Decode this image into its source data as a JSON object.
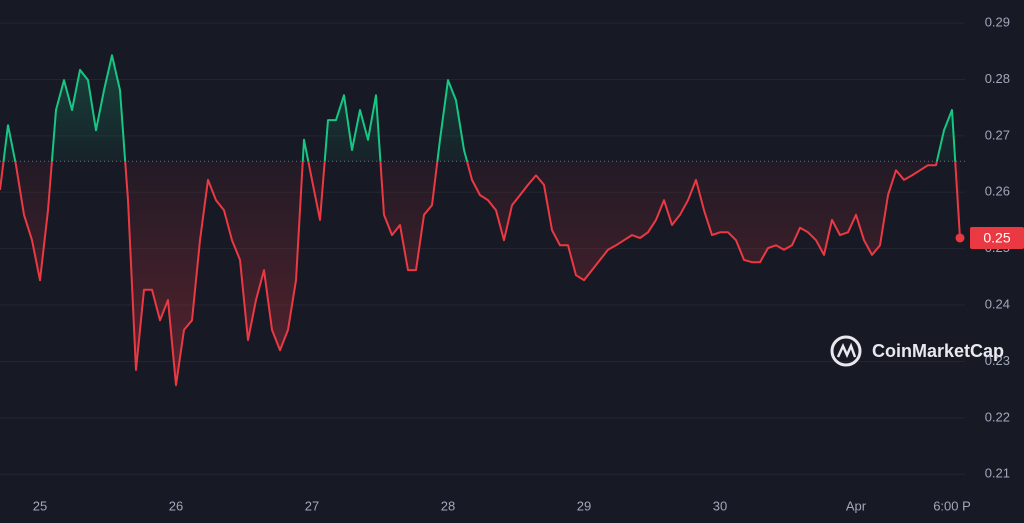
{
  "chart_data": {
    "type": "line",
    "watermark": "CoinMarketCap",
    "categories": [
      null,
      null,
      null,
      null,
      null,
      "25",
      null,
      null,
      null,
      null,
      null,
      null,
      null,
      null,
      null,
      null,
      null,
      null,
      null,
      null,
      null,
      null,
      "26",
      null,
      null,
      null,
      null,
      null,
      null,
      null,
      null,
      null,
      null,
      null,
      null,
      null,
      null,
      null,
      null,
      "27",
      null,
      null,
      null,
      null,
      null,
      null,
      null,
      null,
      null,
      null,
      null,
      null,
      null,
      null,
      null,
      null,
      "28",
      null,
      null,
      null,
      null,
      null,
      null,
      null,
      null,
      null,
      null,
      null,
      null,
      null,
      null,
      null,
      null,
      "29",
      null,
      null,
      null,
      null,
      null,
      null,
      null,
      null,
      null,
      null,
      null,
      null,
      null,
      null,
      null,
      null,
      "30",
      null,
      null,
      null,
      null,
      null,
      null,
      null,
      null,
      null,
      null,
      null,
      null,
      null,
      null,
      null,
      null,
      "Apr",
      null,
      null,
      null,
      null,
      null,
      null,
      null,
      null,
      null,
      null,
      null,
      "6:00 P",
      null
    ],
    "values": [
      0.2604,
      0.2719,
      0.2648,
      0.256,
      0.2515,
      0.2444,
      0.2568,
      0.2746,
      0.2799,
      0.2746,
      0.2817,
      0.2799,
      0.271,
      0.2781,
      0.2843,
      0.2781,
      0.2586,
      0.2285,
      0.2427,
      0.2427,
      0.2373,
      0.2409,
      0.2258,
      0.2356,
      0.2373,
      0.2515,
      0.2622,
      0.2586,
      0.2568,
      0.2515,
      0.248,
      0.2338,
      0.2409,
      0.2462,
      0.2356,
      0.232,
      0.2356,
      0.2444,
      0.2693,
      0.2622,
      0.2551,
      0.2728,
      0.2728,
      0.2772,
      0.2675,
      0.2746,
      0.2693,
      0.2772,
      0.256,
      0.2524,
      0.2542,
      0.2462,
      0.2462,
      0.256,
      0.2577,
      0.2693,
      0.2799,
      0.2763,
      0.2675,
      0.2622,
      0.2595,
      0.2586,
      0.2568,
      0.2515,
      0.2577,
      0.2595,
      0.2613,
      0.263,
      0.2613,
      0.2533,
      0.2506,
      0.2506,
      0.2453,
      0.2444,
      0.2462,
      0.248,
      0.2498,
      0.2506,
      0.2515,
      0.2524,
      0.2519,
      0.2529,
      0.2551,
      0.2586,
      0.2542,
      0.256,
      0.2586,
      0.2622,
      0.2568,
      0.2524,
      0.2529,
      0.2529,
      0.2515,
      0.248,
      0.2476,
      0.2476,
      0.2501,
      0.2506,
      0.2498,
      0.2506,
      0.2537,
      0.2529,
      0.2515,
      0.2489,
      0.2551,
      0.2524,
      0.2529,
      0.256,
      0.2515,
      0.2489,
      0.2506,
      0.2595,
      0.2639,
      0.2622,
      0.263,
      0.2639,
      0.2648,
      0.2648,
      0.271,
      0.2746,
      0.2519
    ],
    "value_labels": [
      null,
      null,
      null,
      null,
      null,
      null,
      null,
      null,
      null,
      null,
      null,
      null,
      null,
      null,
      null,
      null,
      null,
      null,
      null,
      null,
      null,
      null,
      null,
      null,
      null,
      null,
      null,
      null,
      null,
      null,
      null,
      null,
      null,
      null,
      null,
      null,
      null,
      null,
      null,
      null,
      null,
      null,
      null,
      null,
      null,
      null,
      null,
      null,
      null,
      null,
      null,
      null,
      null,
      null,
      null,
      null,
      null,
      null,
      null,
      null,
      null,
      null,
      null,
      null,
      null,
      null,
      null,
      null,
      null,
      null,
      null,
      null,
      null,
      null,
      null,
      null,
      null,
      null,
      null,
      null,
      null,
      null,
      null,
      null,
      null,
      null,
      null,
      null,
      null,
      null,
      null,
      null,
      null,
      null,
      null,
      null,
      null,
      null,
      null,
      null,
      null,
      null,
      null,
      null,
      null,
      null,
      null,
      null,
      null,
      null,
      null,
      null,
      null,
      null,
      null,
      null,
      null,
      null,
      null,
      null,
      "0.25"
    ],
    "baseline": 0.2655,
    "up_color": "#16c784",
    "down_color": "#ea3943",
    "ylim": [
      0.2072,
      0.2941
    ],
    "yticks": [
      0.21,
      0.22,
      0.23,
      0.24,
      0.25,
      0.26,
      0.27,
      0.28,
      0.29
    ],
    "grid": true
  }
}
